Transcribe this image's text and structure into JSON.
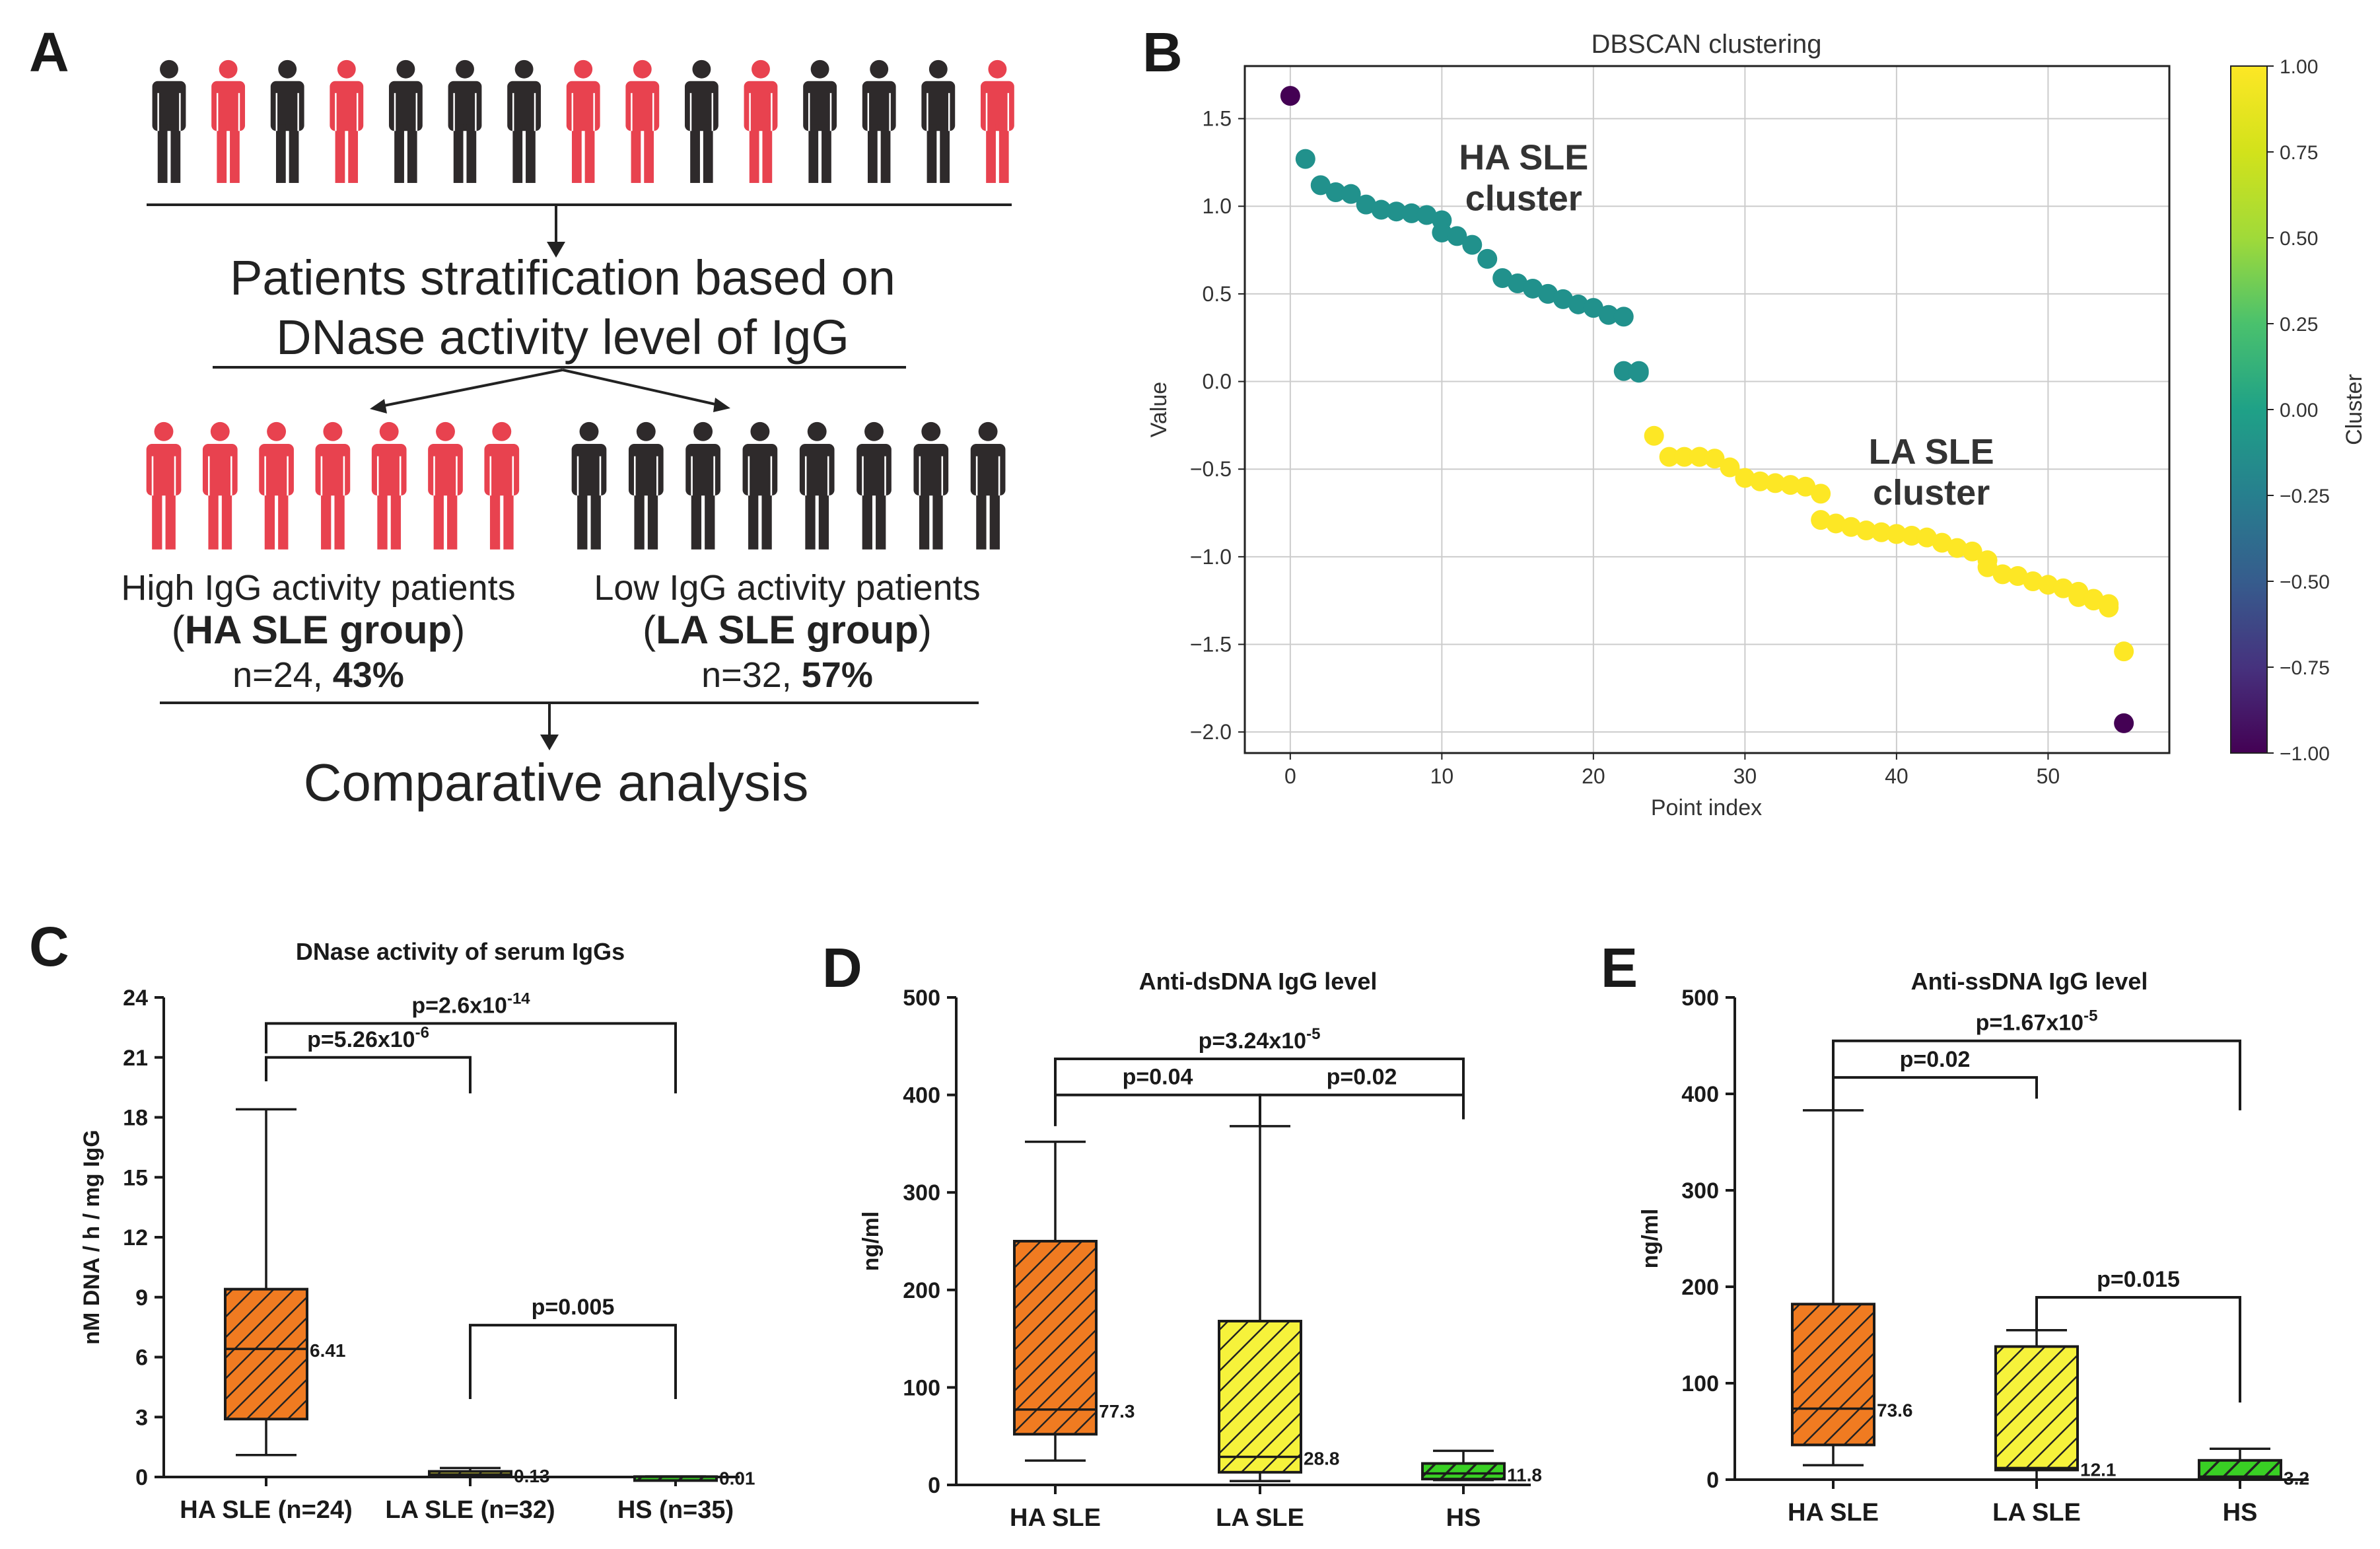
{
  "panel_labels": [
    "A",
    "B",
    "C",
    "D",
    "E"
  ],
  "colors": {
    "red_person": "#e8424f",
    "black_person": "#2e2a2b",
    "ha_box": "#f07b21",
    "la_box": "#f6f23b",
    "hs_box": "#39d024",
    "cluster_minus1": "#440154",
    "cluster_0": "#21918c",
    "cluster_1": "#fde725"
  },
  "panel_a": {
    "top_row": [
      "black",
      "red",
      "black",
      "red",
      "black",
      "black",
      "black",
      "red",
      "red",
      "black",
      "red",
      "black",
      "black",
      "black",
      "red"
    ],
    "stratification_line1": "Patients stratification based on",
    "stratification_line2": "DNase activity level of IgG",
    "left_group": {
      "count_icons": 7,
      "title": "High IgG activity patients",
      "paren_open": "(",
      "bold_name": "HA SLE group",
      "paren_close": ")",
      "n_text": "n=24, ",
      "pct": "43%"
    },
    "right_group": {
      "count_icons": 8,
      "title": "Low IgG activity patients",
      "paren_open": "(",
      "bold_name": "LA SLE group",
      "paren_close": ")",
      "n_text": "n=32, ",
      "pct": "57%"
    },
    "bottom_text": "Comparative analysis"
  },
  "chart_data": [
    {
      "panel": "B",
      "type": "scatter",
      "title": "DBSCAN clustering",
      "xlabel": "Point index",
      "ylabel": "Value",
      "xlim": [
        -3,
        58
      ],
      "ylim": [
        -2.12,
        1.8
      ],
      "xticks": [
        0,
        10,
        20,
        30,
        40,
        50
      ],
      "yticks": [
        -2.0,
        -1.5,
        -1.0,
        -0.5,
        0.0,
        0.5,
        1.0,
        1.5
      ],
      "ytick_labels": [
        "−2.0",
        "−1.5",
        "−1.0",
        "−0.5",
        "0.0",
        "0.5",
        "1.0",
        "1.5"
      ],
      "grid": true,
      "values": [
        1.63,
        1.27,
        1.12,
        1.08,
        1.07,
        1.01,
        0.98,
        0.97,
        0.96,
        0.95,
        0.92,
        0.85,
        0.83,
        0.78,
        0.7,
        0.59,
        0.56,
        0.53,
        0.5,
        0.47,
        0.44,
        0.42,
        0.38,
        0.37,
        0.06,
        0.06,
        0.05,
        -0.31,
        -0.43,
        -0.43,
        -0.43,
        -0.43,
        -0.44,
        -0.49,
        -0.55,
        -0.57,
        -0.58,
        -0.59,
        -0.6,
        -0.64,
        -0.79,
        -0.81,
        -0.83,
        -0.85,
        -0.86,
        -0.87,
        -0.87,
        -0.88,
        -0.89,
        -0.92,
        -0.95,
        -0.97,
        -1.02,
        -1.06,
        -1.1,
        -1.11,
        -1.14,
        -1.16,
        -1.18,
        -1.2,
        -1.23,
        -1.24,
        -1.25,
        -1.27,
        -1.29,
        -1.54,
        -1.95
      ],
      "xs": [
        0,
        1,
        2,
        3,
        4,
        5,
        6,
        7,
        8,
        9,
        10,
        10,
        11,
        12,
        13,
        14,
        15,
        16,
        17,
        18,
        19,
        20,
        21,
        22,
        22,
        23,
        23,
        24,
        25,
        26,
        27,
        27,
        28,
        29,
        30,
        31,
        32,
        33,
        34,
        35,
        35,
        36,
        37,
        38,
        39,
        40,
        40,
        41,
        42,
        43,
        44,
        45,
        46,
        46,
        47,
        48,
        49,
        50,
        51,
        52,
        52,
        53,
        53,
        54,
        54,
        55,
        55
      ],
      "clusters": [
        -1,
        0,
        0,
        0,
        0,
        0,
        0,
        0,
        0,
        0,
        0,
        0,
        0,
        0,
        0,
        0,
        0,
        0,
        0,
        0,
        0,
        0,
        0,
        0,
        0,
        0,
        0,
        1,
        1,
        1,
        1,
        1,
        1,
        1,
        1,
        1,
        1,
        1,
        1,
        1,
        1,
        1,
        1,
        1,
        1,
        1,
        1,
        1,
        1,
        1,
        1,
        1,
        1,
        1,
        1,
        1,
        1,
        1,
        1,
        1,
        1,
        1,
        1,
        1,
        1,
        1,
        -1
      ],
      "annotations": [
        {
          "lines": [
            "HA SLE",
            "cluster"
          ],
          "x": 15.4,
          "y": 1.21
        },
        {
          "lines": [
            "LA SLE",
            "cluster"
          ],
          "x": 42.3,
          "y": -0.47
        }
      ],
      "colorbar": {
        "label": "Cluster",
        "range": [
          -1.0,
          1.0
        ],
        "ticks": [
          "1.00",
          "0.75",
          "0.50",
          "0.25",
          "0.00",
          "−0.25",
          "−0.50",
          "−0.75",
          "−1.00"
        ],
        "tick_values": [
          1.0,
          0.75,
          0.5,
          0.25,
          0.0,
          -0.25,
          -0.5,
          -0.75,
          -1.0
        ]
      }
    },
    {
      "panel": "C",
      "type": "box",
      "title": "DNase activity of serum IgGs",
      "ylabel": "nM DNA / h / mg IgG",
      "ylim": [
        0,
        24
      ],
      "yticks": [
        0,
        3,
        6,
        9,
        12,
        15,
        18,
        21,
        24
      ],
      "categories": [
        "HA SLE (n=24)",
        "LA SLE (n=32)",
        "HS (n=35)"
      ],
      "boxes": [
        {
          "min": 1.1,
          "q1": 2.9,
          "median": 6.41,
          "q3": 9.4,
          "max": 18.4,
          "label": "6.41",
          "color": "ha"
        },
        {
          "min": 0.05,
          "q1": 0.07,
          "median": 0.13,
          "q3": 0.28,
          "max": 0.45,
          "label": "0.13",
          "color": "la"
        },
        {
          "min": 0.0,
          "q1": 0.005,
          "median": 0.01,
          "q3": 0.02,
          "max": 0.03,
          "label": "0.01",
          "color": "hs"
        }
      ],
      "brackets": [
        {
          "from": 0,
          "to": 2,
          "y": 22.7,
          "left_end": 21.2,
          "right_end": 19.2,
          "p_main": "p=2.6x10",
          "p_exp": "-14"
        },
        {
          "from": 0,
          "to": 1,
          "y": 21.0,
          "left_end": 19.8,
          "right_end": 19.2,
          "p_main": "p=5.26x10",
          "p_exp": "-6"
        },
        {
          "from": 1,
          "to": 2,
          "y": 7.6,
          "left_end": 3.9,
          "right_end": 3.9,
          "p_main": "p=0.005",
          "p_exp": ""
        }
      ]
    },
    {
      "panel": "D",
      "type": "box",
      "title": "Anti-dsDNA IgG level",
      "ylabel": "ng/ml",
      "ylim": [
        0,
        500
      ],
      "yticks": [
        0,
        100,
        200,
        300,
        400,
        500
      ],
      "categories": [
        "HA SLE",
        "LA SLE",
        "HS"
      ],
      "boxes": [
        {
          "min": 25,
          "q1": 52,
          "median": 77.3,
          "q3": 250,
          "max": 352,
          "label": "77.3",
          "color": "ha"
        },
        {
          "min": 4,
          "q1": 13,
          "median": 28.8,
          "q3": 168,
          "max": 368,
          "label": "28.8",
          "color": "la"
        },
        {
          "min": 5,
          "q1": 6,
          "median": 11.8,
          "q3": 22,
          "max": 35,
          "label": "11.8",
          "color": "hs"
        }
      ],
      "brackets": [
        {
          "from": 0,
          "to": 2,
          "y": 437,
          "left_end": 400,
          "right_end": 400,
          "p_main": "p=3.24x10",
          "p_exp": "-5"
        },
        {
          "from": 0,
          "to": 1,
          "y": 400,
          "left_end": 368,
          "right_end": 368,
          "p_main": "p=0.04",
          "p_exp": ""
        },
        {
          "from": 1,
          "to": 2,
          "y": 400,
          "left_end": 368,
          "right_end": 375,
          "p_main": "p=0.02",
          "p_exp": ""
        }
      ]
    },
    {
      "panel": "E",
      "type": "box",
      "title": "Anti-ssDNA IgG level",
      "ylabel": "ng/ml",
      "ylim": [
        0,
        500
      ],
      "yticks": [
        0,
        100,
        200,
        300,
        400,
        500
      ],
      "categories": [
        "HA SLE",
        "LA SLE",
        "HS"
      ],
      "boxes": [
        {
          "min": 15,
          "q1": 36,
          "median": 73.6,
          "q3": 182,
          "max": 383,
          "label": "73.6",
          "color": "ha"
        },
        {
          "min": 0,
          "q1": 10,
          "median": 12.1,
          "q3": 138,
          "max": 155,
          "label": "12.1",
          "color": "la"
        },
        {
          "min": 1,
          "q1": 2,
          "median": 3.2,
          "q3": 20,
          "max": 32,
          "label": "3.2",
          "color": "hs"
        }
      ],
      "brackets": [
        {
          "from": 0,
          "to": 2,
          "y": 455,
          "left_end": 383,
          "right_end": 383,
          "p_main": "p=1.67x10",
          "p_exp": "-5"
        },
        {
          "from": 0,
          "to": 1,
          "y": 417,
          "left_end": 383,
          "right_end": 395,
          "p_main": "p=0.02",
          "p_exp": ""
        },
        {
          "from": 1,
          "to": 2,
          "y": 189,
          "left_end": 155,
          "right_end": 80,
          "p_main": "p=0.015",
          "p_exp": ""
        }
      ]
    }
  ]
}
